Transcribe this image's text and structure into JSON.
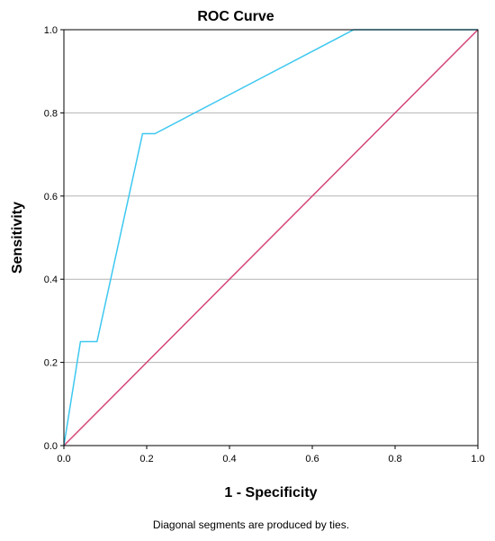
{
  "chart_data": {
    "type": "line",
    "title": "ROC Curve",
    "xlabel": "1 - Specificity",
    "ylabel": "Sensitivity",
    "xlim": [
      0,
      1
    ],
    "ylim": [
      0,
      1
    ],
    "xticks": [
      "0.0",
      "0.2",
      "0.4",
      "0.6",
      "0.8",
      "1.0"
    ],
    "yticks": [
      "0.0",
      "0.2",
      "0.4",
      "0.6",
      "0.8",
      "1.0"
    ],
    "grid": "horizontal",
    "footnote": "Diagonal segments are produced by ties.",
    "series": [
      {
        "color": "#3dc8f0",
        "x": [
          0.0,
          0.04,
          0.08,
          0.19,
          0.22,
          0.7,
          1.0
        ],
        "y": [
          0.0,
          0.25,
          0.25,
          0.75,
          0.75,
          1.0,
          1.0
        ]
      },
      {
        "color": "#d4457a",
        "x": [
          0.0,
          1.0
        ],
        "y": [
          0.0,
          1.0
        ]
      }
    ]
  }
}
